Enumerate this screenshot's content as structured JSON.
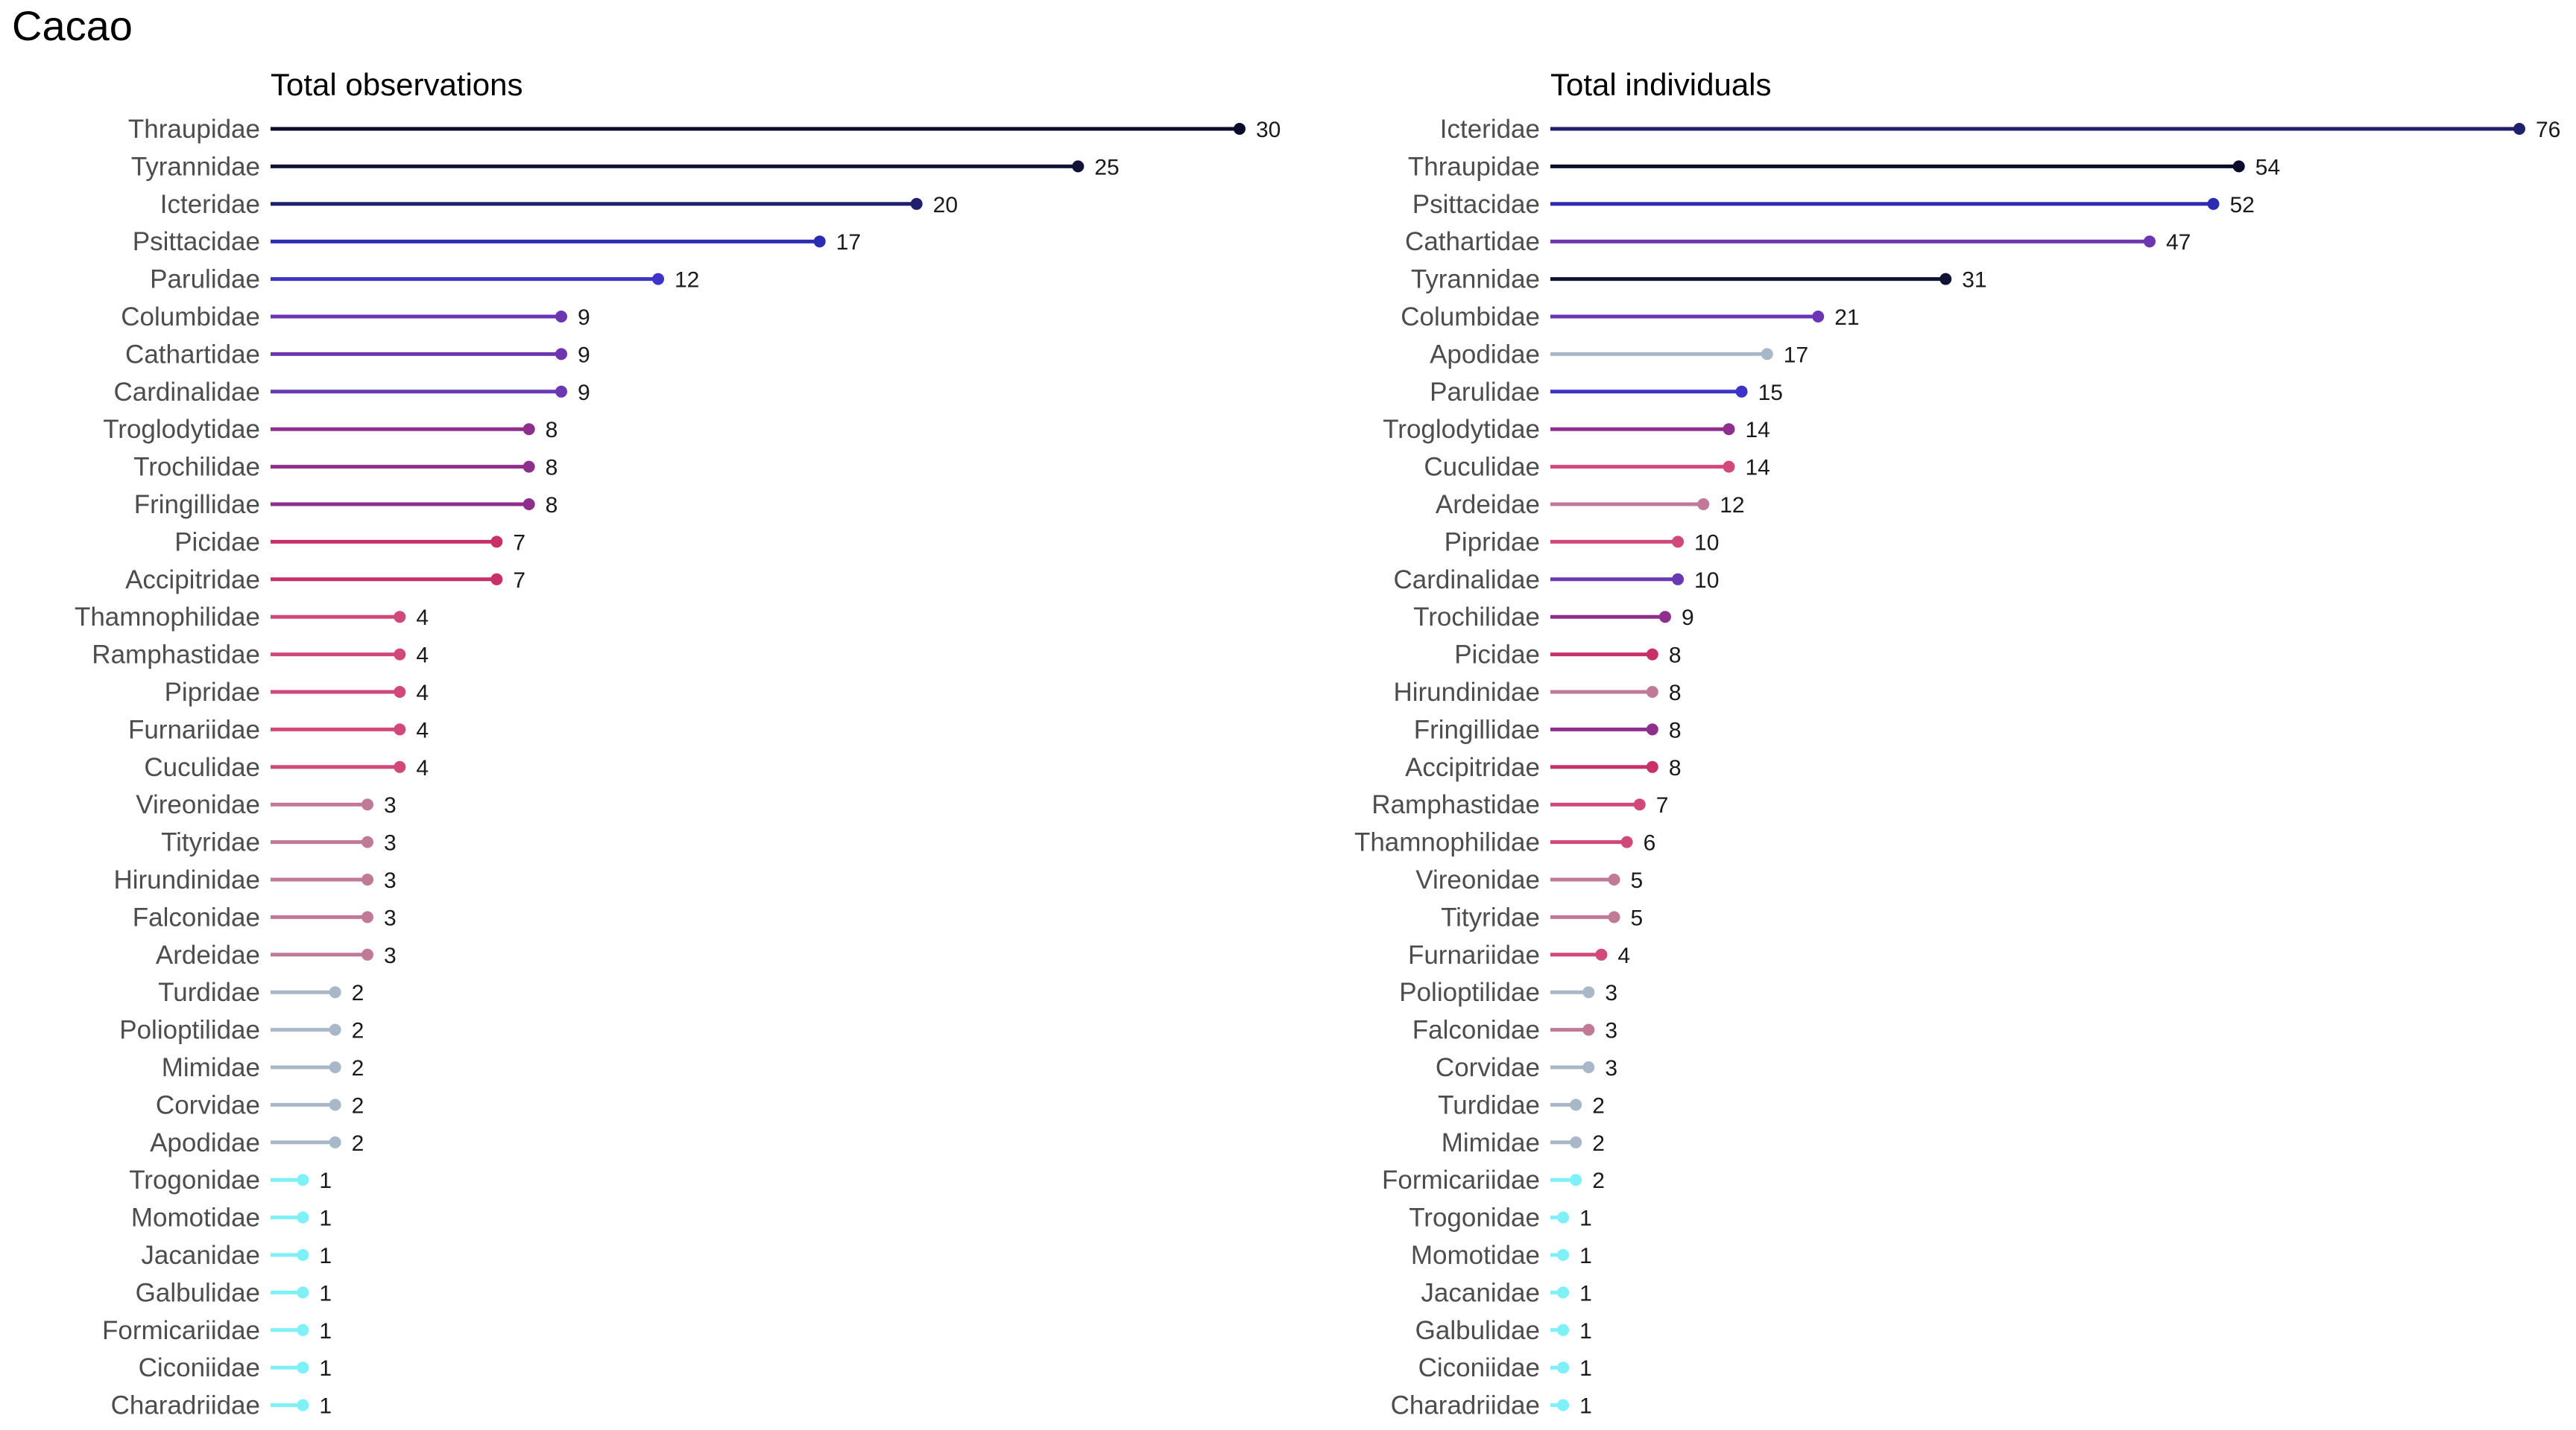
{
  "title": "Cacao",
  "colors": {
    "Thraupidae": "#0b0b2b",
    "Tyrannidae": "#121236",
    "Icteridae": "#1f1f6e",
    "Psittacidae": "#2c2cb2",
    "Parulidae": "#3d33c8",
    "Columbidae": "#6b35b5",
    "Cathartidae": "#6e35b0",
    "Cardinalidae": "#6a38b3",
    "Troglodytidae": "#8e2f8e",
    "Trochilidae": "#8e2f8e",
    "Fringillidae": "#8e2f8e",
    "Picidae": "#c8306a",
    "Accipitridae": "#c8306a",
    "Thamnophilidae": "#d0497a",
    "Ramphastidae": "#d0497a",
    "Pipridae": "#d0497a",
    "Furnariidae": "#d0497a",
    "Cuculidae": "#d0497a",
    "Vireonidae": "#c07a98",
    "Tityridae": "#c07a98",
    "Hirundinidae": "#c07a98",
    "Falconidae": "#c07a98",
    "Ardeidae": "#c07a98",
    "Turdidae": "#a9b8c8",
    "Polioptilidae": "#a9b8c8",
    "Mimidae": "#a9b8c8",
    "Corvidae": "#a9b8c8",
    "Apodidae": "#a9b8c8",
    "Trogonidae": "#7ef0f8",
    "Momotidae": "#7ef0f8",
    "Jacanidae": "#7ef0f8",
    "Galbulidae": "#7ef0f8",
    "Formicariidae": "#7ef0f8",
    "Ciconiidae": "#7ef0f8",
    "Charadriidae": "#7ef0f8"
  },
  "chart_data": [
    {
      "type": "lollipop",
      "title": "Total observations",
      "xlim": [
        0,
        30
      ],
      "grid": false,
      "categories": [
        "Thraupidae",
        "Tyrannidae",
        "Icteridae",
        "Psittacidae",
        "Parulidae",
        "Columbidae",
        "Cathartidae",
        "Cardinalidae",
        "Troglodytidae",
        "Trochilidae",
        "Fringillidae",
        "Picidae",
        "Accipitridae",
        "Thamnophilidae",
        "Ramphastidae",
        "Pipridae",
        "Furnariidae",
        "Cuculidae",
        "Vireonidae",
        "Tityridae",
        "Hirundinidae",
        "Falconidae",
        "Ardeidae",
        "Turdidae",
        "Polioptilidae",
        "Mimidae",
        "Corvidae",
        "Apodidae",
        "Trogonidae",
        "Momotidae",
        "Jacanidae",
        "Galbulidae",
        "Formicariidae",
        "Ciconiidae",
        "Charadriidae"
      ],
      "values": [
        30,
        25,
        20,
        17,
        12,
        9,
        9,
        9,
        8,
        8,
        8,
        7,
        7,
        4,
        4,
        4,
        4,
        4,
        3,
        3,
        3,
        3,
        3,
        2,
        2,
        2,
        2,
        2,
        1,
        1,
        1,
        1,
        1,
        1,
        1
      ]
    },
    {
      "type": "lollipop",
      "title": "Total individuals",
      "xlim": [
        0,
        76
      ],
      "grid": false,
      "categories": [
        "Icteridae",
        "Thraupidae",
        "Psittacidae",
        "Cathartidae",
        "Tyrannidae",
        "Columbidae",
        "Apodidae",
        "Parulidae",
        "Troglodytidae",
        "Cuculidae",
        "Ardeidae",
        "Pipridae",
        "Cardinalidae",
        "Trochilidae",
        "Picidae",
        "Hirundinidae",
        "Fringillidae",
        "Accipitridae",
        "Ramphastidae",
        "Thamnophilidae",
        "Vireonidae",
        "Tityridae",
        "Furnariidae",
        "Polioptilidae",
        "Falconidae",
        "Corvidae",
        "Turdidae",
        "Mimidae",
        "Formicariidae",
        "Trogonidae",
        "Momotidae",
        "Jacanidae",
        "Galbulidae",
        "Ciconiidae",
        "Charadriidae"
      ],
      "values": [
        76,
        54,
        52,
        47,
        31,
        21,
        17,
        15,
        14,
        14,
        12,
        10,
        10,
        9,
        8,
        8,
        8,
        8,
        7,
        6,
        5,
        5,
        4,
        3,
        3,
        3,
        2,
        2,
        2,
        1,
        1,
        1,
        1,
        1,
        1
      ]
    }
  ]
}
